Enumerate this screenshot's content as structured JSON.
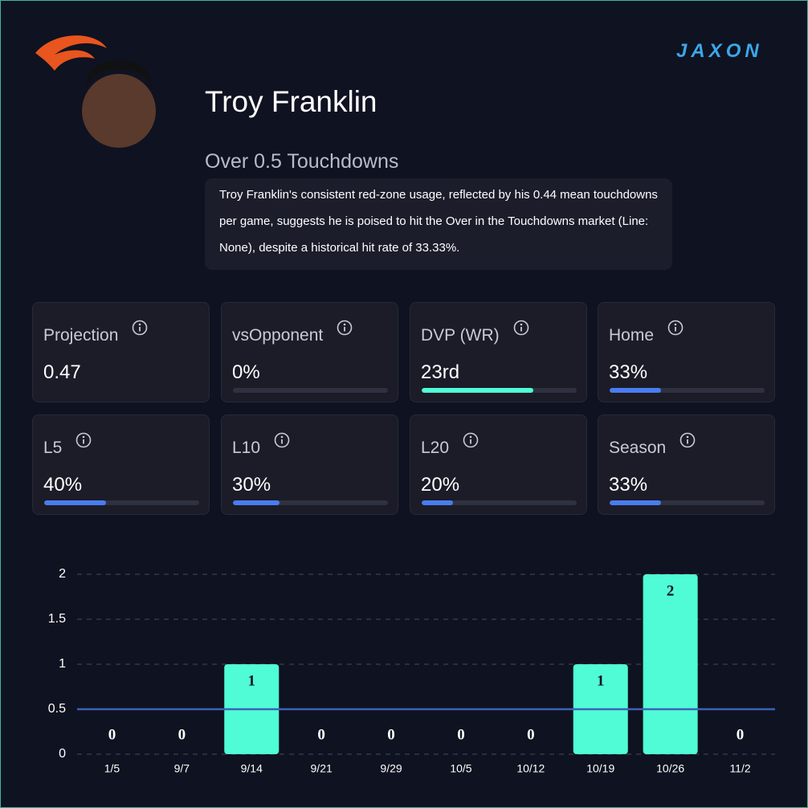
{
  "brand": "JAXON",
  "header": {
    "player": "Troy Franklin",
    "prop": "Over 0.5 Touchdowns",
    "summary": "Troy Franklin's consistent red-zone usage, reflected by his 0.44 mean touchdowns per game, suggests he is poised to hit the Over in the Touchdowns market (Line: None), despite a historical hit rate of 33.33%."
  },
  "cards": [
    {
      "label": "Projection",
      "value": "0.47"
    },
    {
      "label": "vsOpponent",
      "value": "0%",
      "bar": 0
    },
    {
      "label": "DVP (WR)",
      "value": "23rd",
      "bar": 72,
      "color": "#50fcd6"
    },
    {
      "label": "Home",
      "value": "33%",
      "bar": 33,
      "color": "#4a7cf0"
    },
    {
      "label": "L5",
      "value": "40%",
      "bar": 40,
      "color": "#4a7cf0"
    },
    {
      "label": "L10",
      "value": "30%",
      "bar": 30,
      "color": "#4a7cf0"
    },
    {
      "label": "L20",
      "value": "20%",
      "bar": 20,
      "color": "#4a7cf0"
    },
    {
      "label": "Season",
      "value": "33%",
      "bar": 33,
      "color": "#4a7cf0"
    }
  ],
  "chart_data": {
    "type": "bar",
    "categories": [
      "1/5",
      "9/7",
      "9/14",
      "9/21",
      "9/29",
      "10/5",
      "10/12",
      "10/19",
      "10/26",
      "11/2"
    ],
    "values": [
      0,
      0,
      1,
      0,
      0,
      0,
      0,
      1,
      2,
      0
    ],
    "color": "#50fcd6",
    "ylim": [
      0,
      2
    ],
    "yticks": [
      0,
      0.5,
      1,
      1.5,
      2
    ],
    "grid": true,
    "reference_line": 0.5,
    "reference_color": "#3a62b8"
  }
}
